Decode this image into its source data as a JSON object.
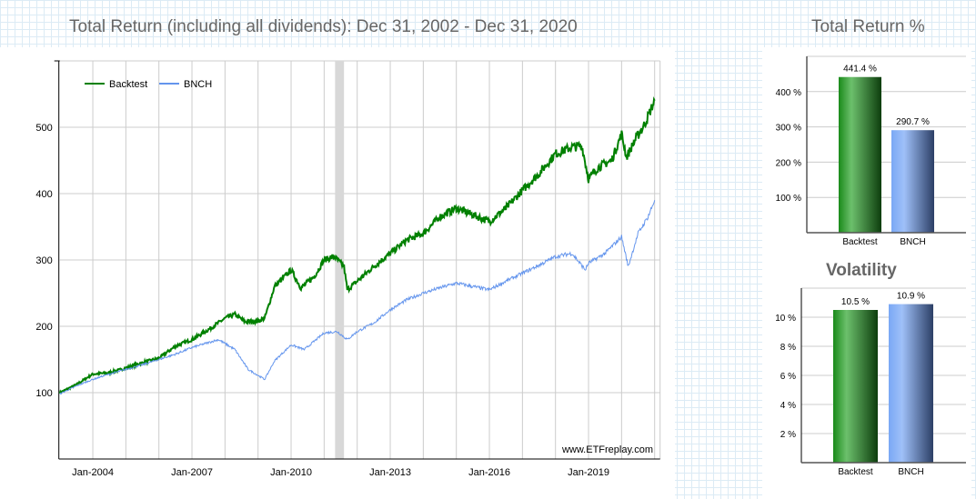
{
  "main_title": "Total Return (including all dividends): Dec 31, 2002 - Dec 31, 2020",
  "side_title": "Total Return %",
  "volatility_title": "Volatility",
  "watermark": "www.ETFreplay.com",
  "colors": {
    "backtest": "#008000",
    "bnch": "#6495ed",
    "band": "#d8d8d8"
  },
  "chart_data": [
    {
      "type": "line",
      "title": "Total Return (including all dividends): Dec 31, 2002 - Dec 31, 2020",
      "xlim": [
        2003,
        2021
      ],
      "ylim": [
        0,
        600
      ],
      "yticks": [
        100,
        200,
        300,
        400,
        500
      ],
      "xticks": [
        {
          "x": 2004,
          "label": "Jan-2004"
        },
        {
          "x": 2007,
          "label": "Jan-2007"
        },
        {
          "x": 2010,
          "label": "Jan-2010"
        },
        {
          "x": 2013,
          "label": "Jan-2013"
        },
        {
          "x": 2016,
          "label": "Jan-2016"
        },
        {
          "x": 2019,
          "label": "Jan-2019"
        }
      ],
      "shaded_band": [
        2011.33,
        2011.6
      ],
      "legend": "top-left",
      "series": [
        {
          "name": "Backtest",
          "points": [
            [
              2003,
              100
            ],
            [
              2003.5,
              112
            ],
            [
              2004,
              128
            ],
            [
              2004.5,
              130
            ],
            [
              2005,
              137
            ],
            [
              2005.5,
              145
            ],
            [
              2006,
              152
            ],
            [
              2006.5,
              170
            ],
            [
              2007,
              180
            ],
            [
              2007.5,
              195
            ],
            [
              2008,
              212
            ],
            [
              2008.3,
              218
            ],
            [
              2008.6,
              207
            ],
            [
              2009,
              208
            ],
            [
              2009.2,
              212
            ],
            [
              2009.5,
              260
            ],
            [
              2010,
              285
            ],
            [
              2010.3,
              258
            ],
            [
              2010.7,
              275
            ],
            [
              2011,
              300
            ],
            [
              2011.3,
              305
            ],
            [
              2011.6,
              290
            ],
            [
              2011.7,
              255
            ],
            [
              2012,
              268
            ],
            [
              2012.5,
              290
            ],
            [
              2013,
              310
            ],
            [
              2013.5,
              330
            ],
            [
              2014,
              340
            ],
            [
              2014.5,
              365
            ],
            [
              2015,
              378
            ],
            [
              2015.5,
              368
            ],
            [
              2016,
              358
            ],
            [
              2016.5,
              378
            ],
            [
              2017,
              405
            ],
            [
              2017.5,
              430
            ],
            [
              2018,
              460
            ],
            [
              2018.5,
              470
            ],
            [
              2018.8,
              472
            ],
            [
              2019,
              422
            ],
            [
              2019.3,
              440
            ],
            [
              2019.7,
              450
            ],
            [
              2020,
              490
            ],
            [
              2020.15,
              455
            ],
            [
              2020.4,
              480
            ],
            [
              2020.7,
              505
            ],
            [
              2021,
              540
            ]
          ]
        },
        {
          "name": "BNCH",
          "points": [
            [
              2003,
              98
            ],
            [
              2003.5,
              110
            ],
            [
              2004,
              120
            ],
            [
              2004.5,
              128
            ],
            [
              2005,
              135
            ],
            [
              2005.5,
              142
            ],
            [
              2006,
              150
            ],
            [
              2006.5,
              158
            ],
            [
              2007,
              168
            ],
            [
              2007.8,
              180
            ],
            [
              2008.3,
              165
            ],
            [
              2008.7,
              135
            ],
            [
              2009.2,
              120
            ],
            [
              2009.5,
              148
            ],
            [
              2010,
              172
            ],
            [
              2010.4,
              165
            ],
            [
              2011,
              190
            ],
            [
              2011.4,
              192
            ],
            [
              2011.7,
              180
            ],
            [
              2012,
              192
            ],
            [
              2012.5,
              205
            ],
            [
              2013,
              225
            ],
            [
              2013.5,
              240
            ],
            [
              2014,
              250
            ],
            [
              2014.5,
              258
            ],
            [
              2015,
              265
            ],
            [
              2015.5,
              260
            ],
            [
              2016,
              255
            ],
            [
              2016.5,
              268
            ],
            [
              2017,
              280
            ],
            [
              2017.5,
              292
            ],
            [
              2018,
              305
            ],
            [
              2018.5,
              310
            ],
            [
              2018.9,
              285
            ],
            [
              2019,
              295
            ],
            [
              2019.5,
              310
            ],
            [
              2020,
              335
            ],
            [
              2020.2,
              290
            ],
            [
              2020.5,
              340
            ],
            [
              2020.8,
              365
            ],
            [
              2021,
              390
            ]
          ]
        }
      ]
    },
    {
      "type": "bar",
      "title": "Total Return %",
      "categories": [
        "Backtest",
        "BNCH"
      ],
      "values": [
        441.4,
        290.7
      ],
      "labels": [
        "441.4 %",
        "290.7 %"
      ],
      "ylim": [
        0,
        500
      ],
      "yticks": [
        100,
        200,
        300,
        400
      ]
    },
    {
      "type": "bar",
      "title": "Volatility",
      "categories": [
        "Backtest",
        "BNCH"
      ],
      "values": [
        10.5,
        10.9
      ],
      "labels": [
        "10.5 %",
        "10.9 %"
      ],
      "ylim": [
        0,
        12
      ],
      "yticks": [
        2,
        4,
        6,
        8,
        10
      ]
    }
  ]
}
